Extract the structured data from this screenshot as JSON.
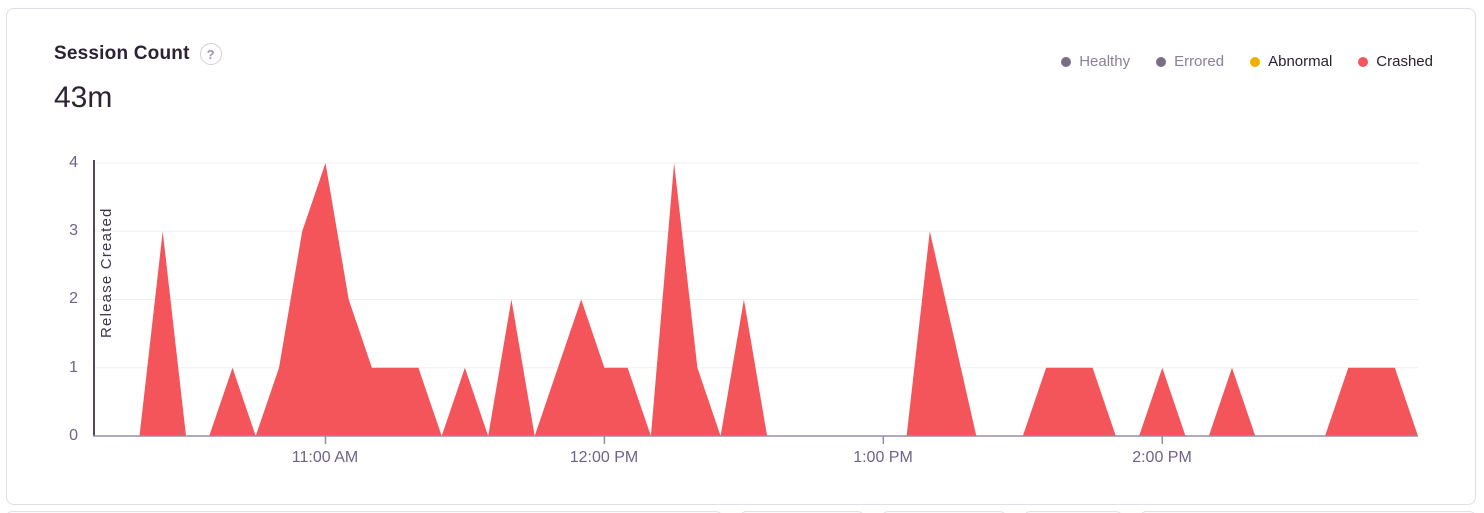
{
  "card": {
    "title": "Session Count",
    "help_icon": "?",
    "value": "43m"
  },
  "legend": {
    "items": [
      {
        "label": "Healthy",
        "color": "#7A6E86",
        "muted": true
      },
      {
        "label": "Errored",
        "color": "#7A6E86",
        "muted": true
      },
      {
        "label": "Abnormal",
        "color": "#F0B000",
        "muted": false
      },
      {
        "label": "Crashed",
        "color": "#F4555A",
        "muted": false
      }
    ]
  },
  "chart_data": {
    "type": "area",
    "title": "Session Count",
    "total_label": "43m",
    "x_range": [
      "10:10 AM",
      "2:55 PM"
    ],
    "ylim": [
      0,
      4
    ],
    "yticks": [
      0,
      1,
      2,
      3,
      4
    ],
    "xticks": [
      "11:00 AM",
      "12:00 PM",
      "1:00 PM",
      "2:00 PM"
    ],
    "grid": true,
    "legend_position": "top-right",
    "annotation": {
      "label": "Release Created",
      "time": "10:10 AM"
    },
    "series": [
      {
        "name": "Crashed",
        "color": "#F4555A",
        "start_time": "10:10 AM",
        "interval_minutes": 5,
        "values": [
          0,
          0,
          0,
          3,
          0,
          0,
          1,
          0,
          1,
          3,
          4,
          2,
          1,
          1,
          1,
          0,
          1,
          0,
          2,
          0,
          1,
          2,
          1,
          1,
          0,
          4,
          1,
          0,
          2,
          0,
          0,
          0,
          0,
          0,
          0,
          0,
          3,
          1.5,
          0,
          0,
          0,
          1,
          1,
          1,
          0,
          0,
          1,
          0,
          0,
          1,
          0,
          0,
          0,
          0,
          1,
          1,
          1,
          0
        ]
      }
    ]
  }
}
